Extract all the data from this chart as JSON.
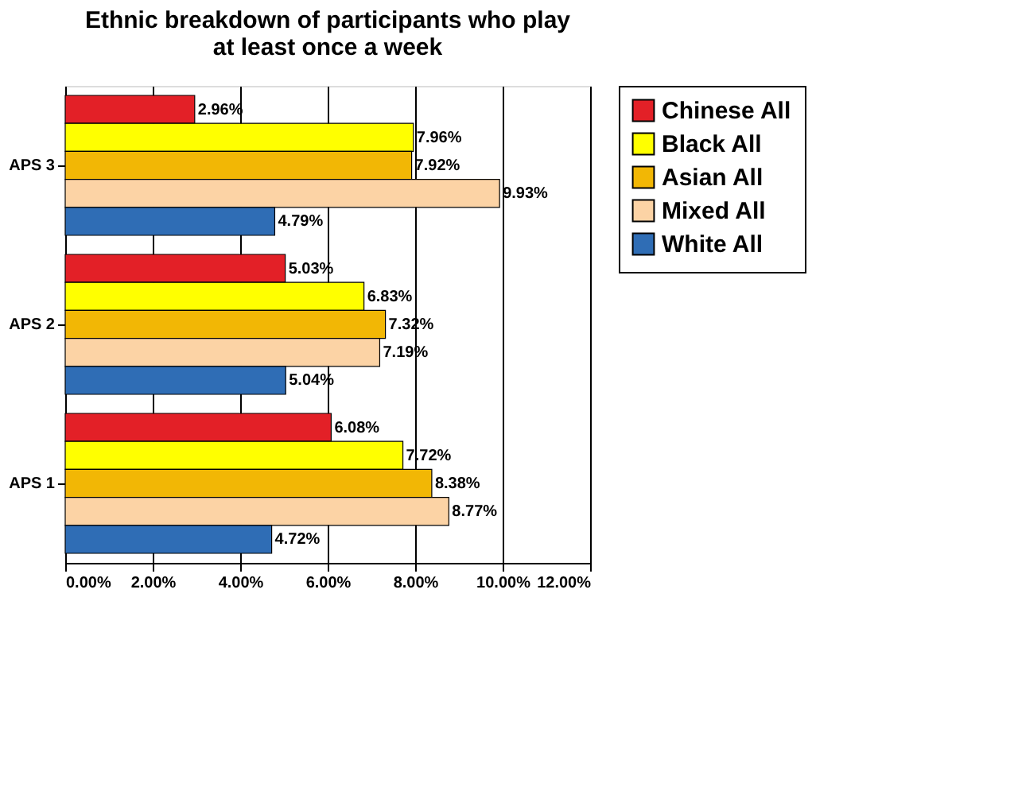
{
  "chart_data": {
    "type": "bar",
    "orientation": "horizontal",
    "title": "Ethnic breakdown of participants who play\nat least once a week",
    "categories": [
      "APS 3",
      "APS 2",
      "APS 1"
    ],
    "series": [
      {
        "name": "Chinese All",
        "color": "#e32027",
        "values": [
          2.96,
          5.03,
          6.08
        ],
        "value_labels": [
          "2.96%",
          "5.03%",
          "6.08%"
        ]
      },
      {
        "name": "Black All",
        "color": "#ffff00",
        "values": [
          7.96,
          6.83,
          7.72
        ],
        "value_labels": [
          "7.96%",
          "6.83%",
          "7.72%"
        ]
      },
      {
        "name": "Asian All",
        "color": "#f2b705",
        "values": [
          7.92,
          7.32,
          8.38
        ],
        "value_labels": [
          "7.92%",
          "7.32%",
          "8.38%"
        ]
      },
      {
        "name": "Mixed All",
        "color": "#fcd3a5",
        "values": [
          9.93,
          7.19,
          8.77
        ],
        "value_labels": [
          "9.93%",
          "7.19%",
          "8.77%"
        ]
      },
      {
        "name": "White All",
        "color": "#2f6db5",
        "values": [
          4.79,
          5.04,
          4.72
        ],
        "value_labels": [
          "4.79%",
          "5.04%",
          "4.72%"
        ]
      }
    ],
    "xlim": [
      0,
      12
    ],
    "xticks": [
      {
        "value": 0,
        "label": "0.00%"
      },
      {
        "value": 2,
        "label": "2.00%"
      },
      {
        "value": 4,
        "label": "4.00%"
      },
      {
        "value": 6,
        "label": "6.00%"
      },
      {
        "value": 8,
        "label": "8.00%"
      },
      {
        "value": 10,
        "label": "10.00%"
      },
      {
        "value": 12,
        "label": "12.00%"
      }
    ],
    "grid": "x",
    "legend": "right"
  }
}
